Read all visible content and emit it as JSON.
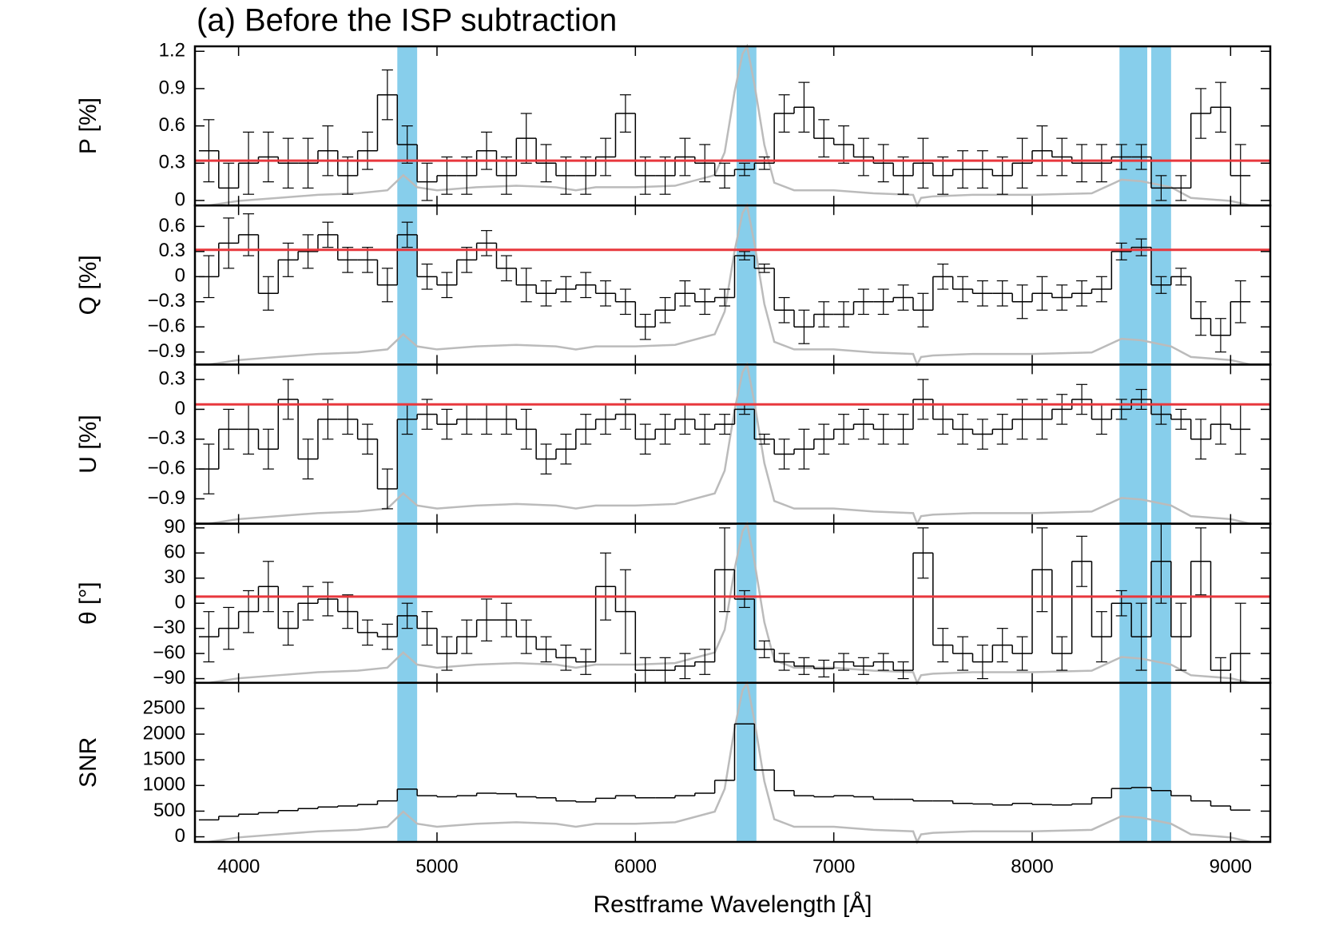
{
  "title": "(a) Before the ISP subtraction",
  "xlabel": "Restframe Wavelength [Å]",
  "xlim": [
    3780,
    9200
  ],
  "xticks": [
    4000,
    5000,
    6000,
    7000,
    8000,
    9000
  ],
  "bins": [
    3800,
    3900,
    4000,
    4100,
    4200,
    4300,
    4400,
    4500,
    4600,
    4700,
    4800,
    4900,
    5000,
    5100,
    5200,
    5300,
    5400,
    5500,
    5600,
    5700,
    5800,
    5900,
    6000,
    6100,
    6200,
    6300,
    6400,
    6500,
    6600,
    6700,
    6800,
    6900,
    7000,
    7100,
    7200,
    7300,
    7400,
    7500,
    7600,
    7700,
    7800,
    7900,
    8000,
    8100,
    8200,
    8300,
    8400,
    8500,
    8600,
    8700,
    8800,
    8900,
    9000,
    9100
  ],
  "bands": {
    "color": "#87ceeb",
    "ranges": [
      [
        4800,
        4900
      ],
      [
        6510,
        6610
      ],
      [
        8440,
        8580
      ],
      [
        8600,
        8700
      ]
    ]
  },
  "flux": {
    "color": "#bbbbbb",
    "ylim": [
      0,
      1.05
    ],
    "x": [
      3850,
      4000,
      4200,
      4400,
      4600,
      4750,
      4830,
      4900,
      5000,
      5200,
      5400,
      5600,
      5700,
      5800,
      6000,
      6200,
      6400,
      6450,
      6500,
      6540,
      6563,
      6600,
      6650,
      6700,
      6800,
      7000,
      7200,
      7400,
      7420,
      7440,
      7500,
      7700,
      8000,
      8300,
      8450,
      8550,
      8700,
      8800,
      9000,
      9100
    ],
    "values": [
      0.0,
      0.03,
      0.05,
      0.07,
      0.08,
      0.1,
      0.2,
      0.12,
      0.1,
      0.12,
      0.13,
      0.12,
      0.1,
      0.12,
      0.12,
      0.13,
      0.2,
      0.35,
      0.75,
      1.0,
      1.05,
      0.8,
      0.4,
      0.15,
      0.1,
      0.1,
      0.08,
      0.07,
      0.0,
      0.05,
      0.06,
      0.07,
      0.07,
      0.08,
      0.17,
      0.16,
      0.12,
      0.05,
      0.03,
      0.0
    ]
  },
  "chart_data": [
    {
      "type": "step",
      "ylabel": "P [%]",
      "color": "#000000",
      "ylim": [
        -0.04,
        1.24
      ],
      "yticks": [
        0,
        0.3,
        0.6,
        0.9,
        1.2
      ],
      "isp": 0.32,
      "isp_color": "#e8383d",
      "values": [
        0.4,
        0.1,
        0.3,
        0.35,
        0.3,
        0.3,
        0.4,
        0.2,
        0.4,
        0.85,
        0.45,
        0.15,
        0.2,
        0.2,
        0.4,
        0.2,
        0.5,
        0.3,
        0.2,
        0.2,
        0.35,
        0.7,
        0.2,
        0.2,
        0.35,
        0.3,
        0.2,
        0.25,
        0.3,
        0.7,
        0.75,
        0.5,
        0.45,
        0.35,
        0.3,
        0.2,
        0.3,
        0.2,
        0.25,
        0.25,
        0.2,
        0.3,
        0.4,
        0.35,
        0.3,
        0.3,
        0.35,
        0.35,
        0.1,
        0.1,
        0.7,
        0.75,
        0.2
      ],
      "errors": [
        0.25,
        0.2,
        0.25,
        0.2,
        0.2,
        0.2,
        0.2,
        0.15,
        0.15,
        0.2,
        0.15,
        0.15,
        0.15,
        0.15,
        0.15,
        0.15,
        0.2,
        0.15,
        0.15,
        0.15,
        0.15,
        0.15,
        0.15,
        0.15,
        0.15,
        0.15,
        0.1,
        0.05,
        0.05,
        0.15,
        0.2,
        0.15,
        0.15,
        0.15,
        0.15,
        0.15,
        0.2,
        0.15,
        0.15,
        0.15,
        0.15,
        0.2,
        0.2,
        0.15,
        0.15,
        0.15,
        0.1,
        0.1,
        0.1,
        0.1,
        0.2,
        0.2,
        0.25
      ]
    },
    {
      "type": "step",
      "ylabel": "Q [%]",
      "color": "#000000",
      "ylim": [
        -1.05,
        0.85
      ],
      "yticks": [
        {
          "value": -0.9,
          "label": "−0.9"
        },
        {
          "value": -0.6,
          "label": "−0.6"
        },
        {
          "value": -0.3,
          "label": "−0.3"
        },
        0,
        0.3,
        0.6
      ],
      "isp": 0.32,
      "isp_color": "#e8383d",
      "values": [
        0,
        0.4,
        0.5,
        -0.2,
        0.2,
        0.3,
        0.5,
        0.2,
        0.2,
        -0.1,
        0.5,
        0,
        -0.1,
        0.2,
        0.4,
        0.1,
        -0.1,
        -0.2,
        -0.15,
        -0.1,
        -0.2,
        -0.3,
        -0.6,
        -0.4,
        -0.2,
        -0.3,
        -0.25,
        0.25,
        0.1,
        -0.4,
        -0.6,
        -0.45,
        -0.45,
        -0.3,
        -0.3,
        -0.25,
        -0.4,
        0,
        -0.15,
        -0.2,
        -0.2,
        -0.3,
        -0.2,
        -0.25,
        -0.2,
        -0.15,
        0.3,
        0.35,
        -0.1,
        0,
        -0.5,
        -0.7,
        -0.3
      ],
      "errors": [
        0.25,
        0.3,
        0.25,
        0.2,
        0.2,
        0.2,
        0.15,
        0.15,
        0.15,
        0.2,
        0.15,
        0.15,
        0.15,
        0.15,
        0.15,
        0.15,
        0.2,
        0.15,
        0.15,
        0.15,
        0.15,
        0.15,
        0.15,
        0.15,
        0.15,
        0.15,
        0.1,
        0.05,
        0.05,
        0.15,
        0.2,
        0.15,
        0.15,
        0.15,
        0.15,
        0.15,
        0.2,
        0.15,
        0.15,
        0.15,
        0.15,
        0.2,
        0.2,
        0.15,
        0.15,
        0.15,
        0.1,
        0.1,
        0.1,
        0.1,
        0.2,
        0.2,
        0.25
      ]
    },
    {
      "type": "step",
      "ylabel": "U [%]",
      "color": "#000000",
      "ylim": [
        -1.15,
        0.45
      ],
      "yticks": [
        {
          "value": -0.9,
          "label": "−0.9"
        },
        {
          "value": -0.6,
          "label": "−0.6"
        },
        {
          "value": -0.3,
          "label": "−0.3"
        },
        0,
        0.3
      ],
      "isp": 0.05,
      "isp_color": "#e8383d",
      "values": [
        -0.6,
        -0.2,
        -0.2,
        -0.4,
        0.1,
        -0.5,
        -0.1,
        -0.1,
        -0.3,
        -0.8,
        -0.1,
        -0.05,
        -0.15,
        -0.1,
        -0.1,
        -0.1,
        -0.2,
        -0.5,
        -0.4,
        -0.2,
        -0.1,
        -0.05,
        -0.3,
        -0.2,
        -0.1,
        -0.2,
        -0.15,
        0,
        -0.3,
        -0.45,
        -0.4,
        -0.3,
        -0.2,
        -0.15,
        -0.2,
        -0.2,
        0.1,
        -0.1,
        -0.2,
        -0.25,
        -0.2,
        -0.1,
        -0.1,
        0,
        0.1,
        -0.1,
        0,
        0.1,
        -0.05,
        -0.1,
        -0.3,
        -0.15,
        -0.2
      ],
      "errors": [
        0.25,
        0.2,
        0.25,
        0.2,
        0.2,
        0.2,
        0.2,
        0.15,
        0.15,
        0.2,
        0.15,
        0.15,
        0.15,
        0.15,
        0.15,
        0.15,
        0.2,
        0.15,
        0.15,
        0.15,
        0.15,
        0.15,
        0.15,
        0.15,
        0.15,
        0.15,
        0.1,
        0.05,
        0.05,
        0.15,
        0.2,
        0.15,
        0.15,
        0.15,
        0.15,
        0.15,
        0.2,
        0.15,
        0.15,
        0.15,
        0.15,
        0.2,
        0.2,
        0.15,
        0.15,
        0.15,
        0.1,
        0.1,
        0.1,
        0.1,
        0.2,
        0.2,
        0.25
      ]
    },
    {
      "type": "step",
      "ylabel": "θ [°]",
      "color": "#000000",
      "ylim": [
        -95,
        95
      ],
      "yticks": [
        {
          "value": -90,
          "label": "−90"
        },
        {
          "value": -60,
          "label": "−60"
        },
        {
          "value": -30,
          "label": "−30"
        },
        0,
        30,
        60,
        90
      ],
      "isp": 8,
      "isp_color": "#e8383d",
      "values": [
        -40,
        -30,
        -10,
        20,
        -30,
        0,
        5,
        -10,
        -35,
        -40,
        -15,
        -30,
        -60,
        -40,
        -20,
        -20,
        -40,
        -55,
        -65,
        -70,
        20,
        -10,
        -80,
        -80,
        -75,
        -70,
        40,
        5,
        -55,
        -70,
        -75,
        -78,
        -70,
        -75,
        -70,
        -80,
        60,
        -50,
        -60,
        -70,
        -50,
        -60,
        40,
        -60,
        50,
        -40,
        0,
        -40,
        50,
        -40,
        50,
        -80,
        -60
      ],
      "errors": [
        30,
        25,
        25,
        30,
        20,
        20,
        20,
        20,
        15,
        15,
        15,
        20,
        20,
        20,
        25,
        20,
        20,
        15,
        15,
        15,
        40,
        50,
        15,
        15,
        15,
        15,
        50,
        10,
        10,
        10,
        10,
        10,
        10,
        10,
        10,
        10,
        30,
        20,
        20,
        20,
        20,
        20,
        50,
        20,
        30,
        30,
        15,
        40,
        50,
        40,
        40,
        15,
        60
      ]
    },
    {
      "type": "step",
      "ylabel": "SNR",
      "color": "#000000",
      "ylim": [
        -100,
        3000
      ],
      "yticks": [
        0,
        500,
        1000,
        1500,
        2000,
        2500
      ],
      "values": [
        330,
        400,
        440,
        470,
        510,
        550,
        580,
        600,
        630,
        700,
        930,
        800,
        780,
        800,
        850,
        840,
        780,
        760,
        700,
        680,
        750,
        800,
        760,
        760,
        800,
        850,
        1100,
        2200,
        1300,
        900,
        800,
        780,
        800,
        780,
        730,
        730,
        700,
        700,
        650,
        640,
        620,
        650,
        630,
        620,
        640,
        760,
        940,
        960,
        900,
        800,
        700,
        600,
        520
      ]
    }
  ]
}
